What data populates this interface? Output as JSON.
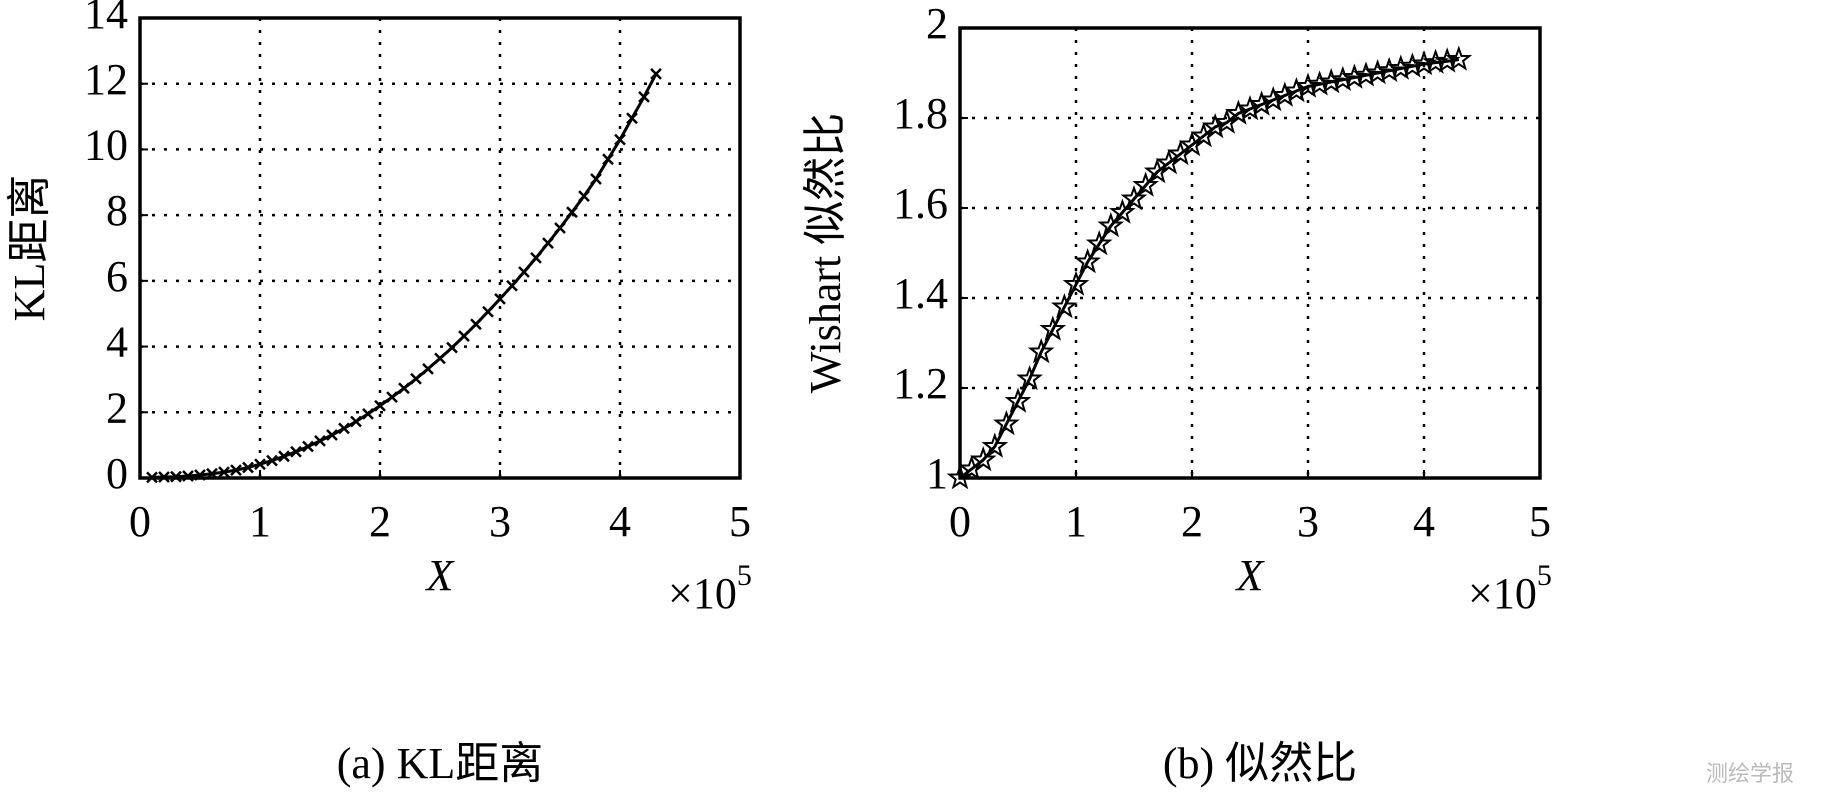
{
  "chart_data": [
    {
      "type": "line",
      "title": "(a) KL距离",
      "x_label": "X",
      "y_label": "KL距离",
      "x_offset_text": {
        "base": "×10",
        "exponent": "5"
      },
      "xlim": [
        0,
        5
      ],
      "xticks": [
        0,
        1,
        2,
        3,
        4,
        5
      ],
      "ylim": [
        0,
        14
      ],
      "yticks": [
        0,
        2,
        4,
        6,
        8,
        10,
        12,
        14
      ],
      "grid": true,
      "series": [
        {
          "color": "#000000",
          "marker": "x",
          "x": [
            0.1,
            0.2,
            0.3,
            0.4,
            0.5,
            0.6,
            0.7,
            0.8,
            0.9,
            1.0,
            1.1,
            1.2,
            1.3,
            1.4,
            1.5,
            1.6,
            1.7,
            1.8,
            1.9,
            2.0,
            2.1,
            2.2,
            2.3,
            2.4,
            2.5,
            2.6,
            2.7,
            2.8,
            2.9,
            3.0,
            3.1,
            3.2,
            3.3,
            3.4,
            3.5,
            3.6,
            3.7,
            3.8,
            3.9,
            4.0,
            4.1,
            4.2,
            4.3
          ],
          "values": [
            0.02,
            0.03,
            0.04,
            0.06,
            0.09,
            0.13,
            0.18,
            0.24,
            0.32,
            0.42,
            0.53,
            0.66,
            0.8,
            0.96,
            1.13,
            1.31,
            1.51,
            1.72,
            1.95,
            2.2,
            2.46,
            2.73,
            3.02,
            3.32,
            3.64,
            3.97,
            4.32,
            4.68,
            5.06,
            5.45,
            5.85,
            6.27,
            6.7,
            7.15,
            7.61,
            8.09,
            8.58,
            9.1,
            9.7,
            10.3,
            10.95,
            11.6,
            12.3
          ]
        }
      ]
    },
    {
      "type": "line",
      "title": "(b) 似然比",
      "x_label": "X",
      "y_label": "Wishart 似然比",
      "x_offset_text": {
        "base": "×10",
        "exponent": "5"
      },
      "xlim": [
        0,
        5
      ],
      "xticks": [
        0,
        1,
        2,
        3,
        4,
        5
      ],
      "ylim": [
        1,
        2
      ],
      "yticks": [
        1,
        1.2,
        1.4,
        1.6,
        1.8,
        2
      ],
      "grid": true,
      "series": [
        {
          "color": "#000000",
          "marker": "star",
          "x": [
            0,
            0.1,
            0.2,
            0.3,
            0.4,
            0.5,
            0.6,
            0.7,
            0.8,
            0.9,
            1.0,
            1.1,
            1.2,
            1.3,
            1.4,
            1.5,
            1.6,
            1.7,
            1.8,
            1.9,
            2.0,
            2.1,
            2.2,
            2.3,
            2.4,
            2.5,
            2.6,
            2.7,
            2.8,
            2.9,
            3.0,
            3.1,
            3.2,
            3.3,
            3.4,
            3.5,
            3.6,
            3.7,
            3.8,
            3.9,
            4.0,
            4.1,
            4.2,
            4.3
          ],
          "values": [
            1.0,
            1.02,
            1.04,
            1.07,
            1.12,
            1.17,
            1.22,
            1.28,
            1.33,
            1.38,
            1.43,
            1.48,
            1.52,
            1.56,
            1.59,
            1.62,
            1.65,
            1.68,
            1.7,
            1.72,
            1.74,
            1.76,
            1.78,
            1.79,
            1.81,
            1.82,
            1.83,
            1.84,
            1.85,
            1.86,
            1.87,
            1.875,
            1.88,
            1.885,
            1.89,
            1.895,
            1.9,
            1.905,
            1.91,
            1.915,
            1.92,
            1.923,
            1.926,
            1.93
          ]
        }
      ]
    }
  ],
  "watermark": "测绘学报"
}
